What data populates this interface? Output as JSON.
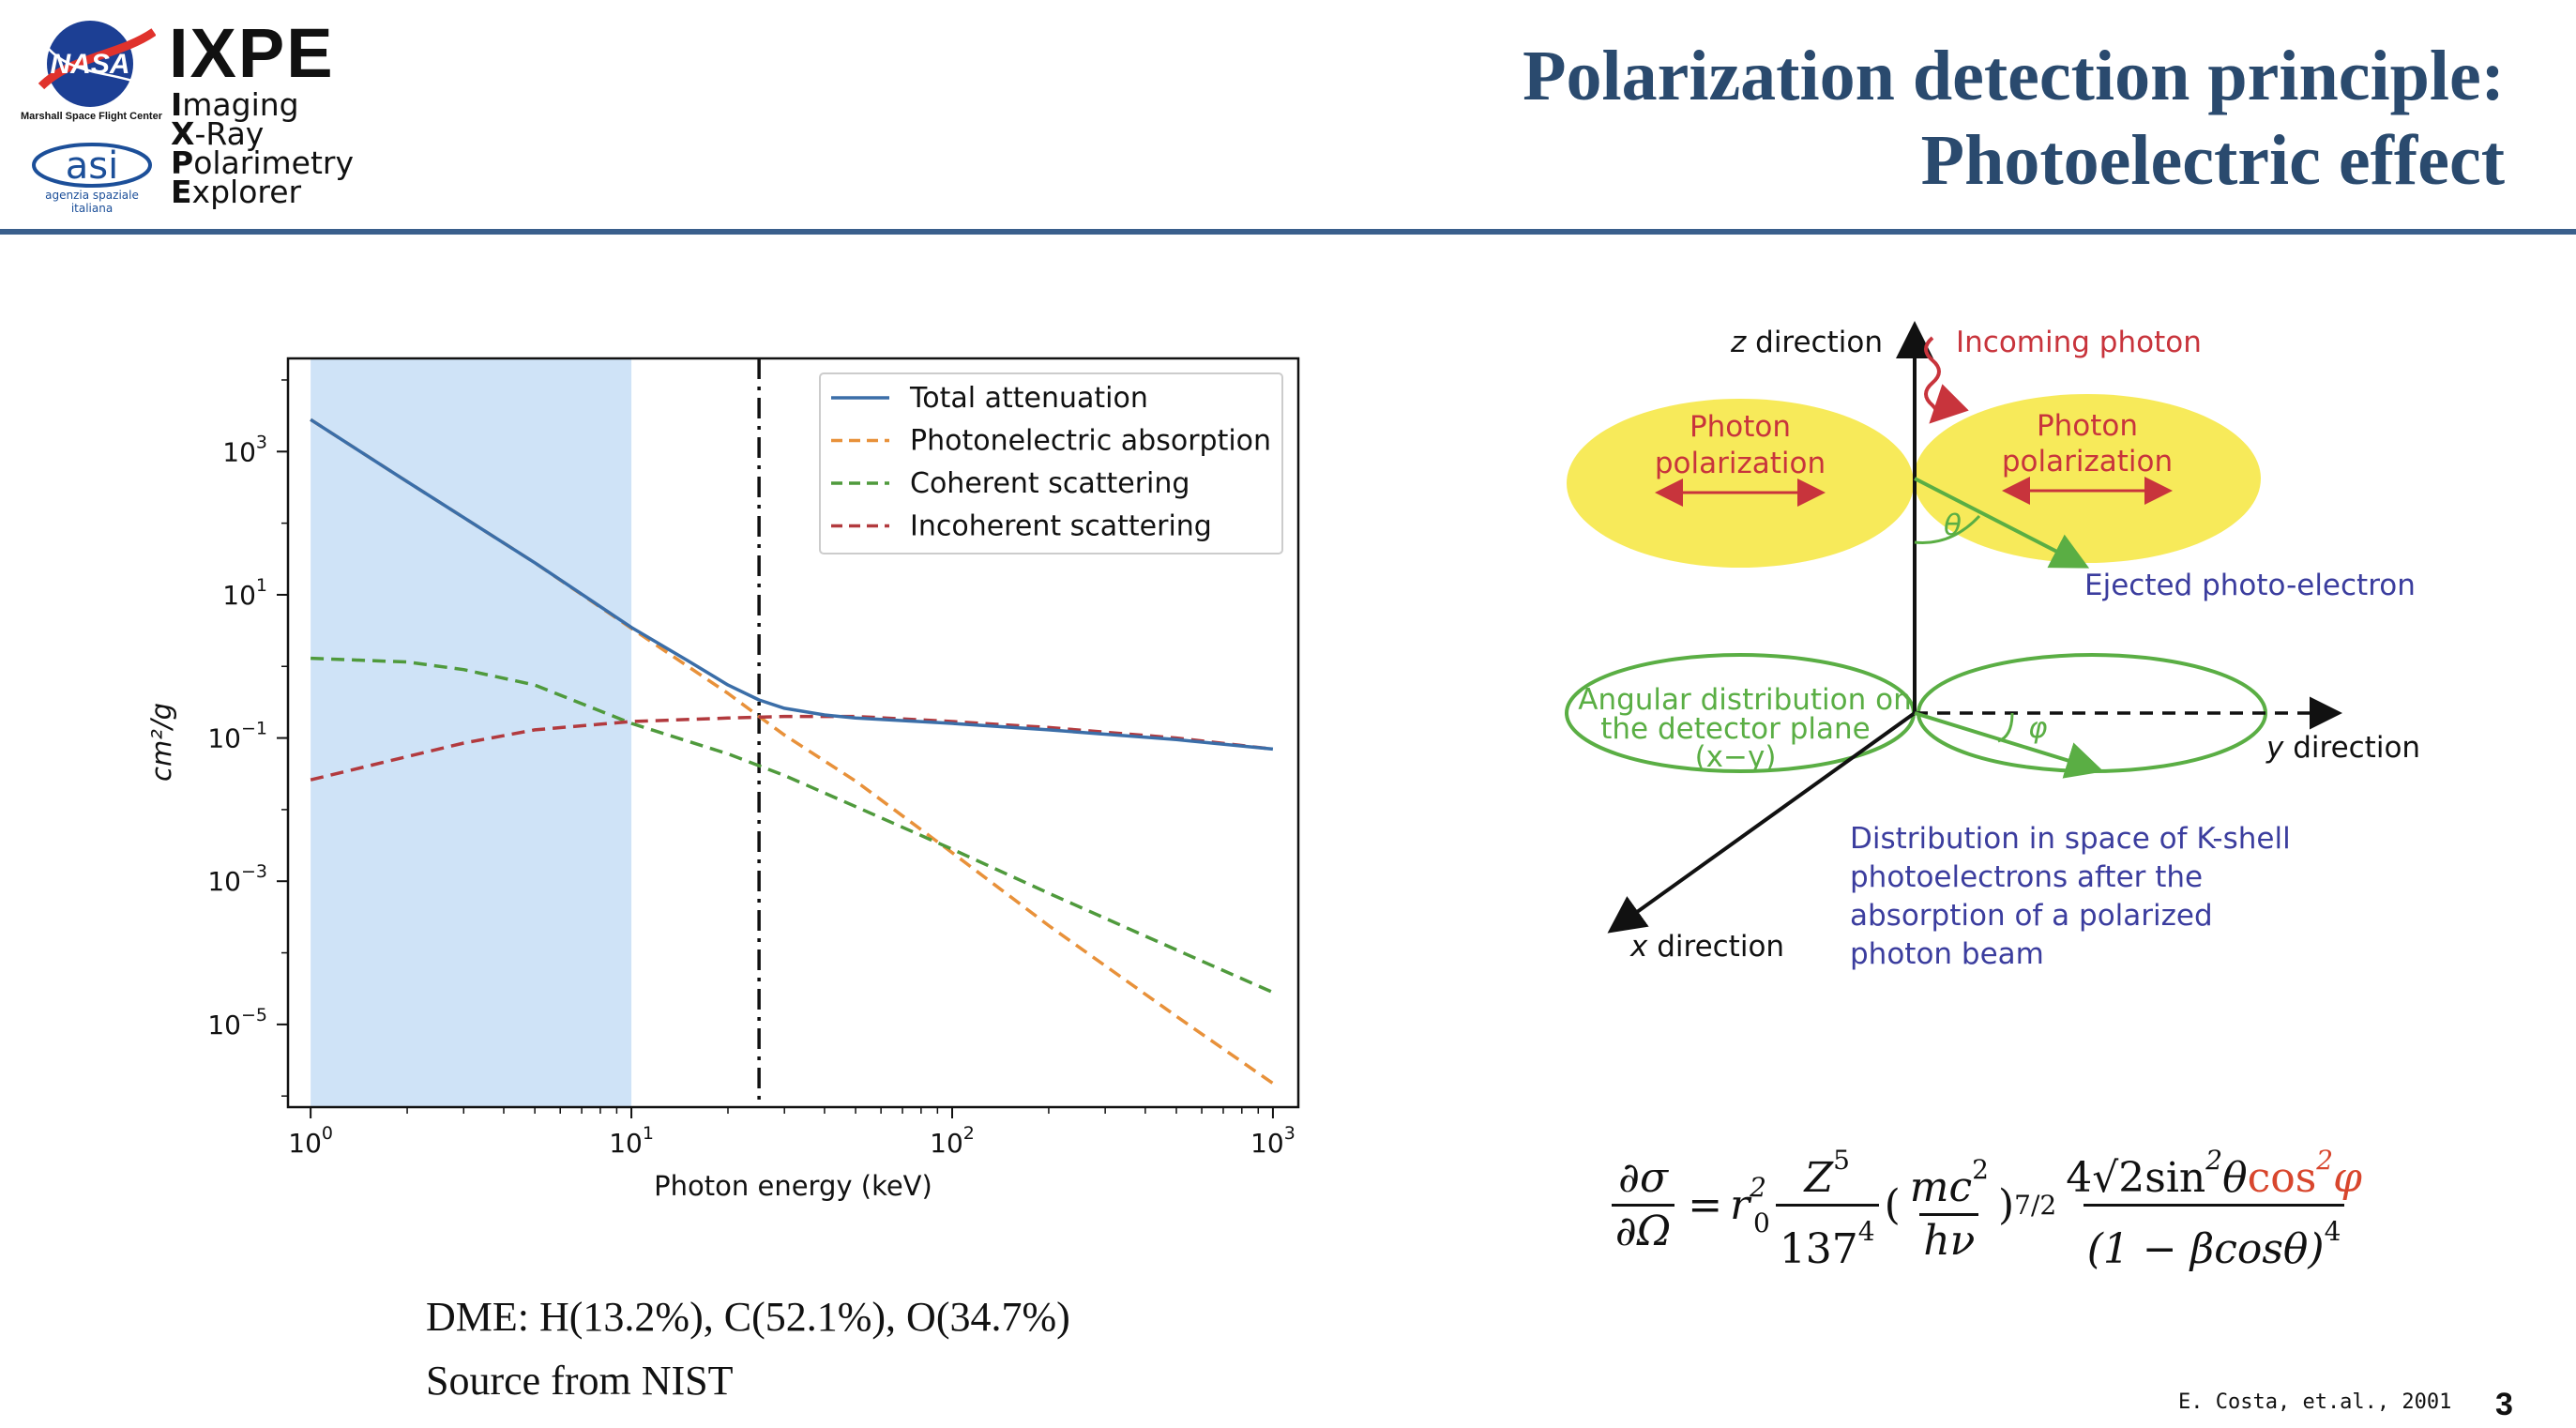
{
  "header": {
    "title_line1": "Polarization detection principle:",
    "title_line2": "Photoelectric effect",
    "logos": {
      "nasa_text": "NASA",
      "nasa_caption": "Marshall Space Flight Center",
      "asi_text": "asi",
      "asi_caption_line1": "agenzia spaziale",
      "asi_caption_line2": "italiana",
      "mission_name": "IXPE",
      "acronym_lines": [
        {
          "initial": "I",
          "rest": "maging"
        },
        {
          "initial": "X",
          "rest": "-Ray"
        },
        {
          "initial": "P",
          "rest": "olarimetry"
        },
        {
          "initial": "E",
          "rest": "xplorer"
        }
      ]
    }
  },
  "chart_data": {
    "type": "line",
    "xlabel": "Photon energy (keV)",
    "ylabel": "cm²/g",
    "x_scale": "log",
    "y_scale": "log",
    "xlim": [
      0.85,
      1200
    ],
    "ylim": [
      7e-07,
      20000
    ],
    "x_ticks": [
      {
        "value": 1,
        "base": "10",
        "exp": "0"
      },
      {
        "value": 10,
        "base": "10",
        "exp": "1"
      },
      {
        "value": 100,
        "base": "10",
        "exp": "2"
      },
      {
        "value": 1000,
        "base": "10",
        "exp": "3"
      }
    ],
    "y_ticks": [
      {
        "value": 1000,
        "base": "10",
        "exp": "3"
      },
      {
        "value": 10,
        "base": "10",
        "exp": "1"
      },
      {
        "value": 0.1,
        "base": "10",
        "exp": "−1"
      },
      {
        "value": 0.001,
        "base": "10",
        "exp": "−3"
      },
      {
        "value": 1e-05,
        "base": "10",
        "exp": "−5"
      }
    ],
    "shaded_region": {
      "x": [
        1,
        10
      ],
      "color": "#cfe3f7"
    },
    "vertical_line": {
      "x": 25,
      "style": "dash-dot"
    },
    "legend_position": "upper right",
    "grid": false,
    "series": [
      {
        "name": "Total attenuation",
        "color": "#3b6ea8",
        "style": "solid",
        "x": [
          1,
          2,
          5,
          10,
          15,
          20,
          25,
          30,
          40,
          50,
          100,
          200,
          500,
          1000
        ],
        "y": [
          2800,
          380,
          28,
          3.5,
          1.2,
          0.55,
          0.34,
          0.26,
          0.21,
          0.19,
          0.16,
          0.13,
          0.095,
          0.07
        ]
      },
      {
        "name": "Photonelectric absorption",
        "color": "#e8913a",
        "style": "dashed",
        "x": [
          1,
          2,
          5,
          10,
          20,
          25,
          30,
          50,
          100,
          200,
          500,
          1000
        ],
        "y": [
          2800,
          380,
          28,
          3.4,
          0.42,
          0.2,
          0.11,
          0.025,
          0.0025,
          0.00024,
          1.3e-05,
          1.5e-06
        ]
      },
      {
        "name": "Coherent scattering",
        "color": "#4f9a3c",
        "style": "dashed",
        "x": [
          1,
          2,
          3,
          5,
          10,
          20,
          30,
          50,
          100,
          200,
          500,
          1000
        ],
        "y": [
          1.3,
          1.15,
          0.9,
          0.55,
          0.16,
          0.06,
          0.03,
          0.011,
          0.0028,
          0.00068,
          0.00011,
          2.8e-05
        ]
      },
      {
        "name": "Incoherent scattering",
        "color": "#b23a3e",
        "style": "dashed",
        "x": [
          1,
          2,
          3,
          5,
          10,
          20,
          30,
          50,
          100,
          200,
          500,
          1000
        ],
        "y": [
          0.026,
          0.055,
          0.085,
          0.13,
          0.17,
          0.19,
          0.2,
          0.2,
          0.17,
          0.14,
          0.1,
          0.07
        ]
      }
    ]
  },
  "notes": {
    "composition": "DME: H(13.2%), C(52.1%), O(34.7%)",
    "source": "Source from NIST"
  },
  "diagram": {
    "z_direction": "z direction",
    "incoming_photon": "Incoming photon",
    "photon_label_line1": "Photon",
    "photon_label_line2": "polarization",
    "ejected": "Ejected photo-electron",
    "theta": "θ",
    "phi": "φ",
    "angular_line1": "Angular distribution on",
    "angular_line2": "the detector plane",
    "angular_line3": "(x−y)",
    "y_direction": "y direction",
    "x_direction": "x direction",
    "distribution_lines": [
      "Distribution in space of K-shell",
      "photoelectrons after the",
      "absorption of a polarized",
      "photon beam"
    ],
    "colors": {
      "red": "#c8343c",
      "green": "#5aae44",
      "blue": "#3b3d9e",
      "yellow": "#f7ea5a",
      "black": "#111111"
    }
  },
  "formula": {
    "lhs_num": "∂σ",
    "lhs_den": "∂Ω",
    "equals": "=",
    "r": "r",
    "r_sup": "2",
    "r_sub": "0",
    "z_num": "Z",
    "z_sup": "5",
    "z_den": "137",
    "z_den_sup": "4",
    "open_paren": "(",
    "mc_num": "mc",
    "mc_sup": "2",
    "hv_den": "hν",
    "close_paren": ")",
    "power": "7/2",
    "num_prefix": "4√2sin",
    "num_sup1": "2",
    "num_theta": "θ",
    "num_cos": "cos",
    "num_sup2": "2",
    "num_phi": "φ",
    "den_text": "(1 − βcosθ)",
    "den_sup": "4"
  },
  "footer": {
    "citation": "E. Costa, et.al., 2001",
    "page_number": "3"
  }
}
